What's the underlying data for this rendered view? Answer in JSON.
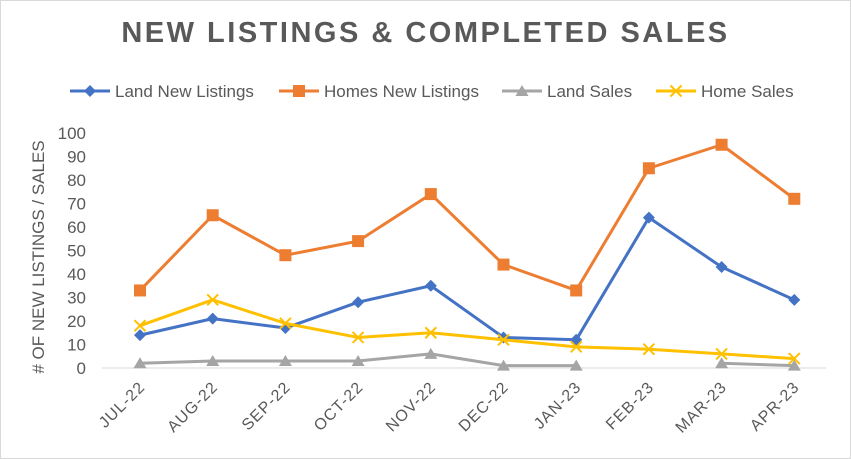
{
  "chart_data": {
    "type": "line",
    "title": "NEW LISTINGS & COMPLETED SALES",
    "xlabel": "",
    "ylabel": "# OF NEW LISTINGS / SALES",
    "ylim": [
      0,
      100
    ],
    "yticks": [
      0,
      10,
      20,
      30,
      40,
      50,
      60,
      70,
      80,
      90,
      100
    ],
    "grid": false,
    "legend_position": "top",
    "categories": [
      "JUL-22",
      "AUG-22",
      "SEP-22",
      "OCT-22",
      "NOV-22",
      "DEC-22",
      "JAN-23",
      "FEB-23",
      "MAR-23",
      "APR-23"
    ],
    "series": [
      {
        "name": "Land New Listings",
        "color": "#4472c4",
        "marker": "diamond",
        "values": [
          14,
          21,
          17,
          28,
          35,
          13,
          12,
          64,
          43,
          29
        ]
      },
      {
        "name": "Homes New Listings",
        "color": "#ed7d31",
        "marker": "square",
        "values": [
          33,
          65,
          48,
          54,
          74,
          44,
          33,
          85,
          95,
          72
        ]
      },
      {
        "name": "Land Sales",
        "color": "#a5a5a5",
        "marker": "triangle",
        "values": [
          2,
          3,
          3,
          3,
          6,
          1,
          1,
          null,
          2,
          1
        ]
      },
      {
        "name": "Home Sales",
        "color": "#ffc000",
        "marker": "x",
        "values": [
          18,
          29,
          19,
          13,
          15,
          12,
          9,
          8,
          6,
          4
        ]
      }
    ]
  }
}
